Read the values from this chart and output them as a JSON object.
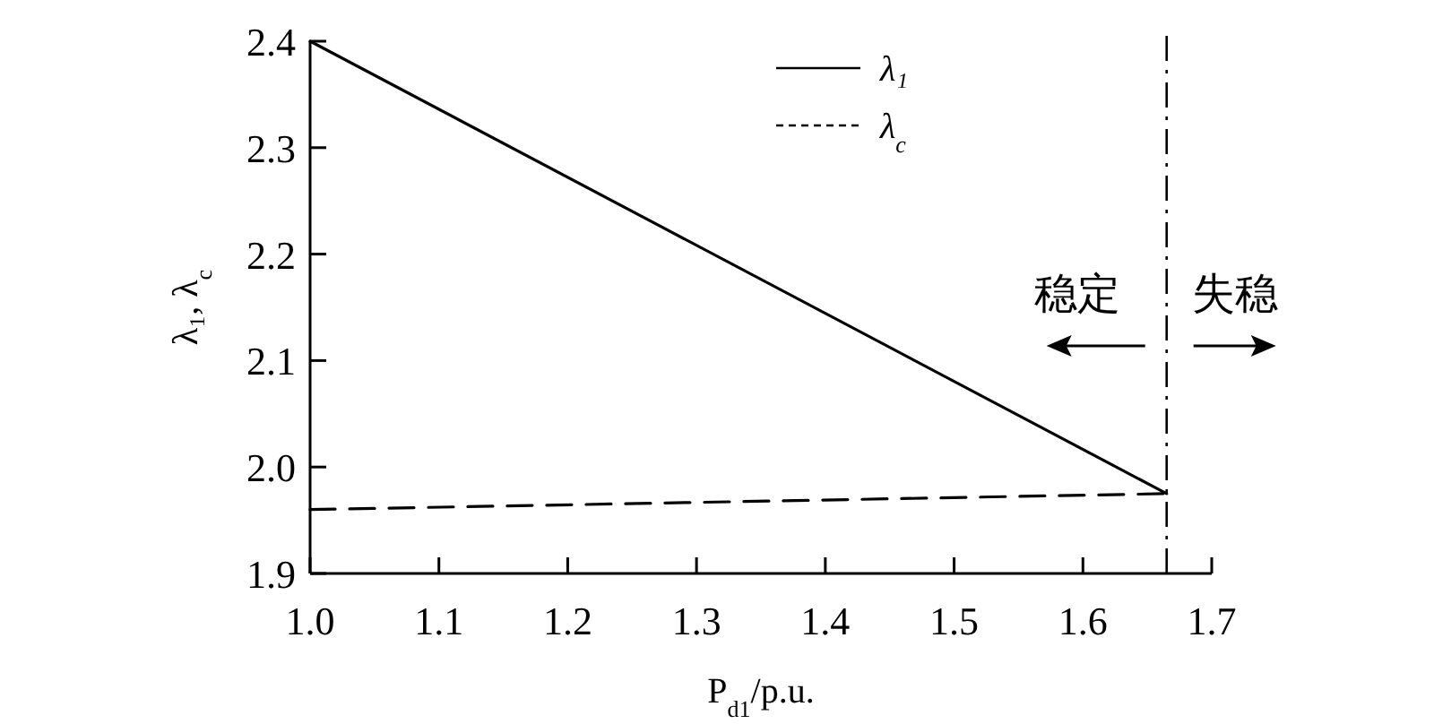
{
  "chart_data": {
    "type": "line",
    "xlabel": "P$_{d1}$/p.u.",
    "ylabel": "λ₁, λ$_{c}$",
    "series": [
      {
        "name": "λ₁",
        "color": "#000000",
        "line_style": "solid",
        "values": [
          2.4,
          1.975
        ]
      },
      {
        "name": "λ$_{c}$",
        "color": "#000000",
        "line_style": "dashed",
        "values": [
          1.96,
          1.975
        ]
      }
    ],
    "x": [
      1.0,
      1.665
    ],
    "xlim": [
      1.0,
      1.7
    ],
    "xticks": [
      {
        "value": 1.0,
        "label": "1.0"
      },
      1.1,
      1.2,
      1.3,
      1.4,
      1.5,
      1.6,
      1.7
    ],
    "ylim": [
      1.9,
      2.4
    ],
    "yticks": [
      {
        "value": 1.9,
        "label": "1.9"
      },
      {
        "value": 2.0,
        "label": "2.0"
      },
      2.1,
      2.2,
      2.3,
      2.4
    ],
    "ref_lines": [
      {
        "axis": "x",
        "value": 1.665,
        "color": "#000000",
        "line_style": "dashdot"
      }
    ],
    "annotations": [
      "稳定",
      "失稳"
    ],
    "legend": "top",
    "grid": false
  }
}
